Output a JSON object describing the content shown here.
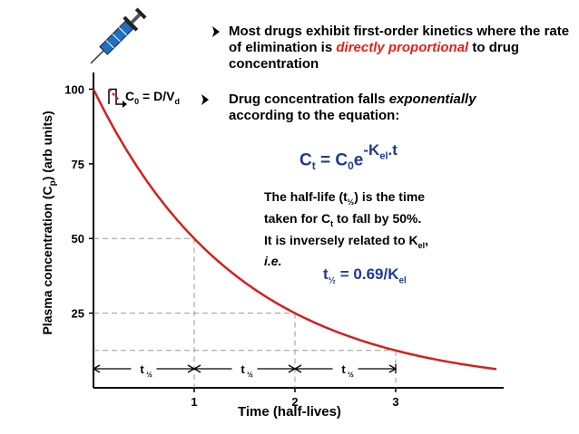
{
  "chart_data": {
    "type": "line",
    "title": "",
    "xlabel": "Time (half-lives)",
    "ylabel_main": "Plasma concentration (C",
    "ylabel_sub": "p",
    "ylabel_tail": ") (arb units)",
    "xlim": [
      0,
      4
    ],
    "ylim": [
      0,
      105
    ],
    "x_ticks": [
      "1",
      "2",
      "3"
    ],
    "y_ticks": [
      "25",
      "50",
      "75",
      "100"
    ],
    "series": [
      {
        "x": [
          0,
          0.5,
          1,
          1.5,
          2,
          2.5,
          3,
          3.5,
          4
        ],
        "y": [
          100,
          70.7,
          50,
          35.4,
          25,
          17.7,
          12.5,
          8.8,
          6.25
        ],
        "color": "#d42020"
      }
    ],
    "half_life_points": [
      {
        "x": 1,
        "y": 50
      },
      {
        "x": 2,
        "y": 25
      },
      {
        "x": 3,
        "y": 12.5
      }
    ],
    "half_life_label_main": "t",
    "half_life_label_sub": "½",
    "c0_label": {
      "main": "C",
      "sub0": "0",
      "mid": " = D/V",
      "sub1": "d"
    }
  },
  "bullets": [
    {
      "text_before": "Most drugs exhibit first-order kinetics where the rate of elimination is ",
      "emphasis": "directly proportional",
      "text_after": " to drug concentration"
    },
    {
      "text_before": "Drug concentration falls ",
      "emphasis": "exponentially",
      "text_after": " according to the equation:"
    }
  ],
  "equation": {
    "lhs": "C",
    "lhs_sub": "t",
    "eq": " = C",
    "c_sub": "0",
    "e": "e",
    "exp": "-K",
    "exp_sub": "el",
    "exp_tail": ".t"
  },
  "half_life_text": {
    "line1_a": "The half-life (t",
    "line1_sub": "½",
    "line1_b": ") is the time",
    "line2_a": "taken for C",
    "line2_sub": "t",
    "line2_b": " to fall by 50%.",
    "line3_a": "It is inversely related to K",
    "line3_sub": "el",
    "line3_b": ",",
    "line4": "i.e."
  },
  "half_life_eq": {
    "a": "t",
    "a_sub": "½",
    "b": " = 0.69/K",
    "b_sub": "el"
  },
  "colors": {
    "curve": "#d42020",
    "emphasis": "#e8201a",
    "equation": "#1f3a93",
    "syringe": "#1f6fc4"
  }
}
